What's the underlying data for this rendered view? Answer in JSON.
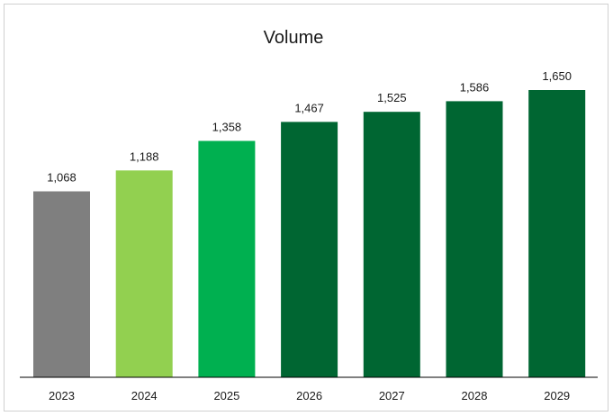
{
  "chart_data": {
    "type": "bar",
    "title": "Volume",
    "categories": [
      "2023",
      "2024",
      "2025",
      "2026",
      "2027",
      "2028",
      "2029"
    ],
    "values": [
      1068,
      1188,
      1358,
      1467,
      1525,
      1586,
      1650
    ],
    "value_labels": [
      "1,068",
      "1,188",
      "1,358",
      "1,467",
      "1,525",
      "1,586",
      "1,650"
    ],
    "colors": [
      "#7f7f7f",
      "#92d050",
      "#00b050",
      "#006632",
      "#006632",
      "#006632",
      "#006632"
    ],
    "ylim": [
      0,
      1650
    ],
    "grid": false,
    "legend": "none",
    "xlabel": "",
    "ylabel": ""
  }
}
